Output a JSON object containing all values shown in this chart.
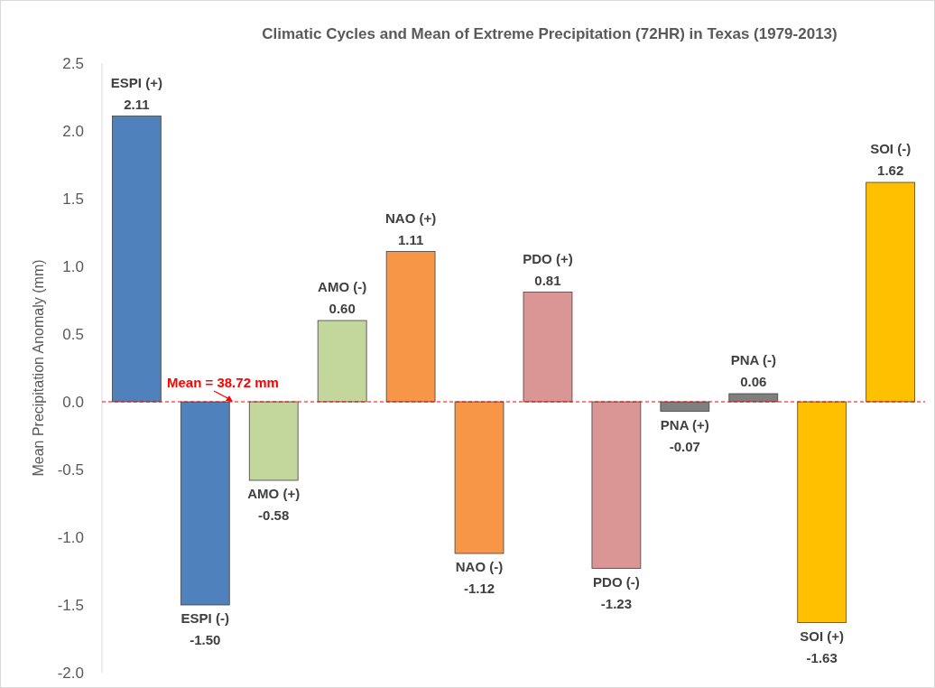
{
  "chart_data": {
    "type": "bar",
    "title": "Climatic Cycles and Mean of Extreme Precipitation (72HR) in Texas (1979-2013)",
    "ylabel": "Mean Precipitation  Anomaly (mm)",
    "categories": [
      "ESPI (+)",
      "ESPI (-)",
      "AMO (+)",
      "AMO (-)",
      "NAO (+)",
      "NAO (-)",
      "PDO (+)",
      "PDO (-)",
      "PNA (+)",
      "PNA (-)",
      "SOI (+)",
      "SOI (-)"
    ],
    "values": [
      2.11,
      -1.5,
      -0.58,
      0.6,
      1.11,
      -1.12,
      0.81,
      -1.23,
      -0.07,
      0.06,
      -1.63,
      1.62
    ],
    "value_labels": [
      "2.11",
      "-1.50",
      "-0.58",
      "0.60",
      "1.11",
      "-1.12",
      "0.81",
      "-1.23",
      "-0.07",
      "0.06",
      "-1.63",
      "1.62"
    ],
    "colors": [
      "#4f81bd",
      "#4f81bd",
      "#c3d69b",
      "#c3d69b",
      "#f79646",
      "#f79646",
      "#d99694",
      "#d99694",
      "#7f7f7f",
      "#7f7f7f",
      "#ffc000",
      "#ffc000"
    ],
    "ylim": [
      -2,
      2.5
    ],
    "yticks": [
      {
        "value": -2,
        "label": "-2.0"
      },
      {
        "value": -1.5,
        "label": "-1.5"
      },
      {
        "value": -1,
        "label": "-1.0"
      },
      {
        "value": -0.5,
        "label": "-0.5"
      },
      {
        "value": 0,
        "label": "0.0"
      },
      {
        "value": 0.5,
        "label": "0.5"
      },
      {
        "value": 1,
        "label": "1.0"
      },
      {
        "value": 1.5,
        "label": "1.5"
      },
      {
        "value": 2,
        "label": "2.0"
      },
      {
        "value": 2.5,
        "label": "2.5"
      }
    ],
    "ref_lines": [
      {
        "axis": "y",
        "value": 0,
        "color": "#ff0000",
        "line_style": "dashed"
      }
    ],
    "annotations": [
      "Mean = 38.72 mm"
    ],
    "grid": false
  }
}
